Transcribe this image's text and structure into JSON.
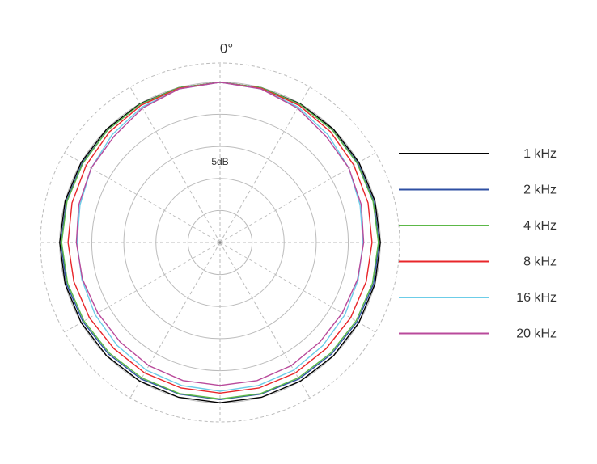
{
  "chart_data": {
    "type": "polar",
    "angle_label": "0°",
    "ring_label": "5dB",
    "rlim": [
      -25,
      3
    ],
    "rticks": [
      -20,
      -15,
      -10,
      -5,
      0
    ],
    "thetaticks": [
      0,
      30,
      60,
      90,
      120,
      150,
      180,
      210,
      240,
      270,
      300,
      330
    ],
    "theta": [
      0,
      15,
      30,
      45,
      60,
      75,
      90,
      105,
      120,
      135,
      150,
      165,
      180,
      195,
      210,
      225,
      240,
      255,
      270,
      285,
      300,
      315,
      330,
      345
    ],
    "series": [
      {
        "name": "1 kHz",
        "color": "#000000",
        "values": [
          0,
          0,
          0,
          0,
          0,
          0,
          0,
          0,
          0,
          0,
          0,
          0,
          0,
          0,
          0,
          0,
          0,
          0,
          0,
          0,
          0,
          0,
          0,
          0
        ]
      },
      {
        "name": "2 kHz",
        "color": "#2e4fa3",
        "values": [
          0,
          0,
          -0.1,
          -0.2,
          -0.2,
          -0.2,
          -0.2,
          -0.2,
          -0.3,
          -0.4,
          -0.4,
          -0.5,
          -0.5,
          -0.5,
          -0.4,
          -0.4,
          -0.3,
          -0.2,
          -0.2,
          -0.2,
          -0.2,
          -0.2,
          -0.1,
          0
        ]
      },
      {
        "name": "4 kHz",
        "color": "#5cb848",
        "values": [
          0,
          0,
          -0.1,
          -0.2,
          -0.3,
          -0.3,
          -0.3,
          -0.4,
          -0.5,
          -0.6,
          -0.6,
          -0.6,
          -0.6,
          -0.6,
          -0.6,
          -0.6,
          -0.5,
          -0.4,
          -0.3,
          -0.3,
          -0.3,
          -0.2,
          -0.1,
          0
        ]
      },
      {
        "name": "8 kHz",
        "color": "#e8262a",
        "values": [
          0,
          -0.1,
          -0.3,
          -0.6,
          -0.9,
          -1.1,
          -1.3,
          -1.4,
          -1.5,
          -1.6,
          -1.5,
          -1.5,
          -1.5,
          -1.5,
          -1.5,
          -1.6,
          -1.5,
          -1.4,
          -1.3,
          -1.1,
          -0.9,
          -0.6,
          -0.3,
          -0.1
        ]
      },
      {
        "name": "16 kHz",
        "color": "#6ccde8",
        "values": [
          0,
          -0.2,
          -0.6,
          -1.2,
          -1.8,
          -2.4,
          -2.7,
          -2.7,
          -2.5,
          -2.3,
          -2,
          -1.9,
          -1.8,
          -1.9,
          -2,
          -2.3,
          -2.5,
          -2.7,
          -2.7,
          -2.4,
          -1.8,
          -1.2,
          -0.6,
          -0.2
        ]
      },
      {
        "name": "20 kHz",
        "color": "#b94a9b",
        "values": [
          0,
          -0.2,
          -0.8,
          -1.6,
          -1.8,
          -2.2,
          -2.6,
          -2.8,
          -3,
          -3,
          -2.8,
          -2.7,
          -2.7,
          -2.7,
          -2.8,
          -3,
          -3,
          -2.8,
          -2.6,
          -2.2,
          -1.8,
          -1.6,
          -0.8,
          -0.2
        ]
      }
    ]
  }
}
